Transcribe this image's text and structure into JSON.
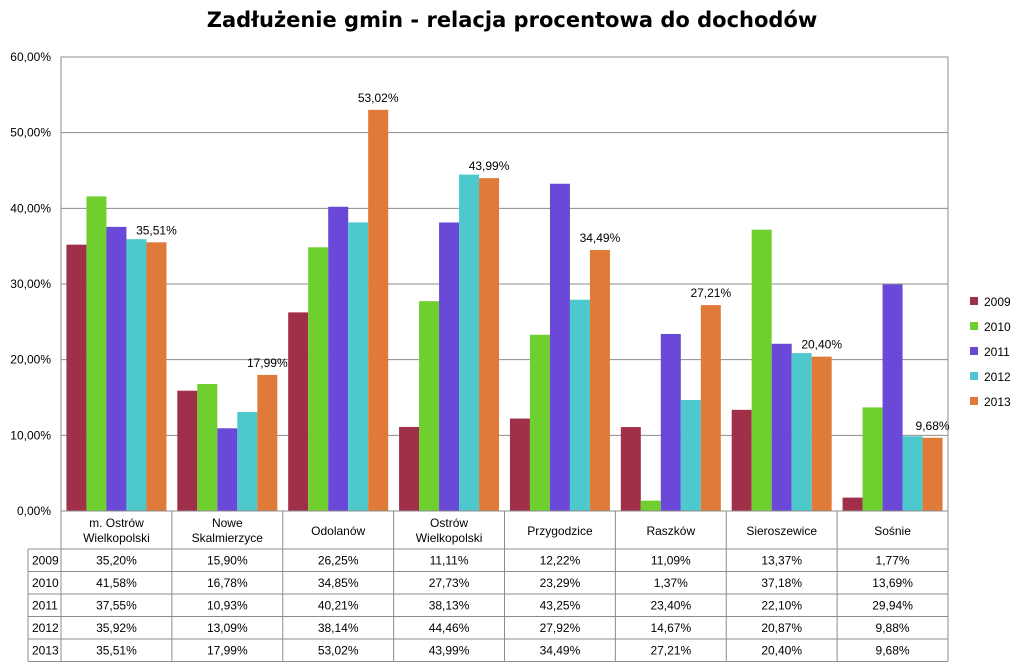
{
  "chart_data": {
    "type": "bar",
    "title": "Zadłużenie gmin - relacja procentowa do dochodów",
    "categories": [
      [
        "m. Ostrów",
        "Wielkopolski"
      ],
      [
        "Nowe",
        "Skalmierzyce"
      ],
      [
        "Odolanów"
      ],
      [
        "Ostrów",
        "Wielkopolski"
      ],
      [
        "Przygodzice"
      ],
      [
        "Raszków"
      ],
      [
        "Sieroszewice"
      ],
      [
        "Sośnie"
      ]
    ],
    "ylim": [
      0,
      60
    ],
    "yticks": [
      "0,00%",
      "10,00%",
      "20,00%",
      "30,00%",
      "40,00%",
      "50,00%",
      "60,00%"
    ],
    "grid": true,
    "legend_position": "right",
    "series": [
      {
        "name": "2009",
        "color": "#A0304A",
        "values": [
          35.2,
          15.9,
          26.25,
          11.11,
          12.22,
          11.09,
          13.37,
          1.77
        ],
        "labels": [
          "35,20%",
          "15,90%",
          "26,25%",
          "11,11%",
          "12,22%",
          "11,09%",
          "13,37%",
          "1,77%"
        ]
      },
      {
        "name": "2010",
        "color": "#6FCF2F",
        "values": [
          41.58,
          16.78,
          34.85,
          27.73,
          23.29,
          1.37,
          37.18,
          13.69
        ],
        "labels": [
          "41,58%",
          "16,78%",
          "34,85%",
          "27,73%",
          "23,29%",
          "1,37%",
          "37,18%",
          "13,69%"
        ]
      },
      {
        "name": "2011",
        "color": "#6A48D8",
        "values": [
          37.55,
          10.93,
          40.21,
          38.13,
          43.25,
          23.4,
          22.1,
          29.94
        ],
        "labels": [
          "37,55%",
          "10,93%",
          "40,21%",
          "38,13%",
          "43,25%",
          "23,40%",
          "22,10%",
          "29,94%"
        ]
      },
      {
        "name": "2012",
        "color": "#4DC8CC",
        "values": [
          35.92,
          13.09,
          38.14,
          44.46,
          27.92,
          14.67,
          20.87,
          9.88
        ],
        "labels": [
          "35,92%",
          "13,09%",
          "38,14%",
          "44,46%",
          "27,92%",
          "14,67%",
          "20,87%",
          "9,88%"
        ]
      },
      {
        "name": "2013",
        "color": "#E07A38",
        "values": [
          35.51,
          17.99,
          53.02,
          43.99,
          34.49,
          27.21,
          20.4,
          9.68
        ],
        "labels": [
          "35,51%",
          "17,99%",
          "53,02%",
          "43,99%",
          "34,49%",
          "27,21%",
          "20,40%",
          "9,68%"
        ]
      }
    ],
    "data_labels": {
      "series": "2013",
      "text": [
        "35,51%",
        "17,99%",
        "53,02%",
        "43,99%",
        "34,49%",
        "27,21%",
        "20,40%",
        "9,68%"
      ]
    }
  }
}
